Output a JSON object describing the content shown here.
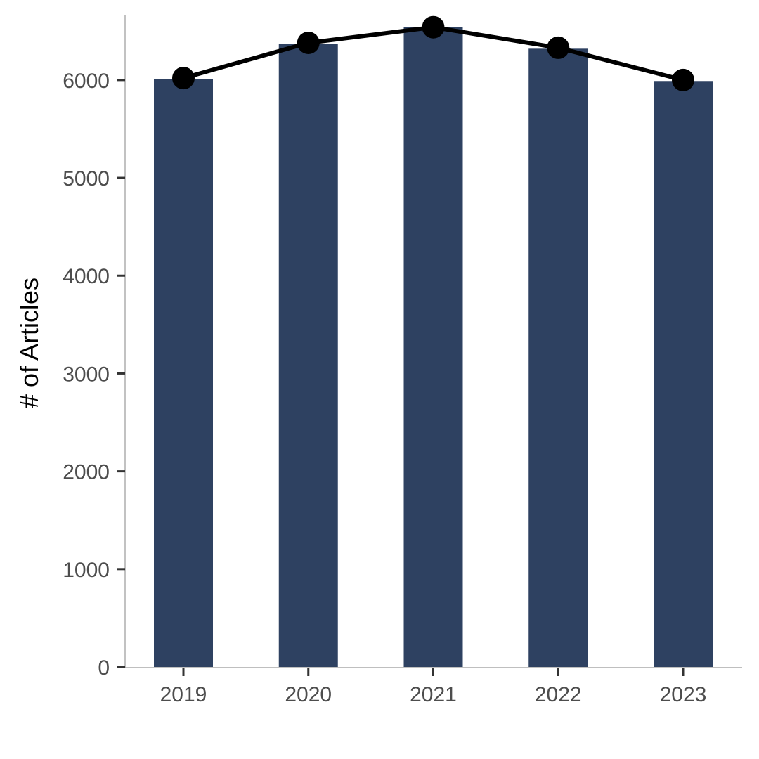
{
  "chart_data": {
    "type": "bar",
    "title": "",
    "xlabel": "",
    "ylabel": "# of Articles",
    "categories": [
      "2019",
      "2020",
      "2021",
      "2022",
      "2023"
    ],
    "values": [
      6010,
      6370,
      6540,
      6320,
      5990
    ],
    "overlay_line": {
      "type": "line",
      "values": [
        6020,
        6380,
        6540,
        6330,
        6000
      ],
      "marker": "circle"
    },
    "yticks": [
      0,
      1000,
      2000,
      3000,
      4000,
      5000,
      6000
    ],
    "ytick_labels": [
      "0",
      "1000",
      "2000",
      "3000",
      "4000",
      "5000",
      "6000"
    ],
    "ylim": [
      0,
      6660
    ],
    "grid": false,
    "legend": "none",
    "colors": {
      "bar": "#2e4161",
      "line": "#000000",
      "axis": "#333333",
      "tick_text": "#4d4d4d"
    }
  }
}
